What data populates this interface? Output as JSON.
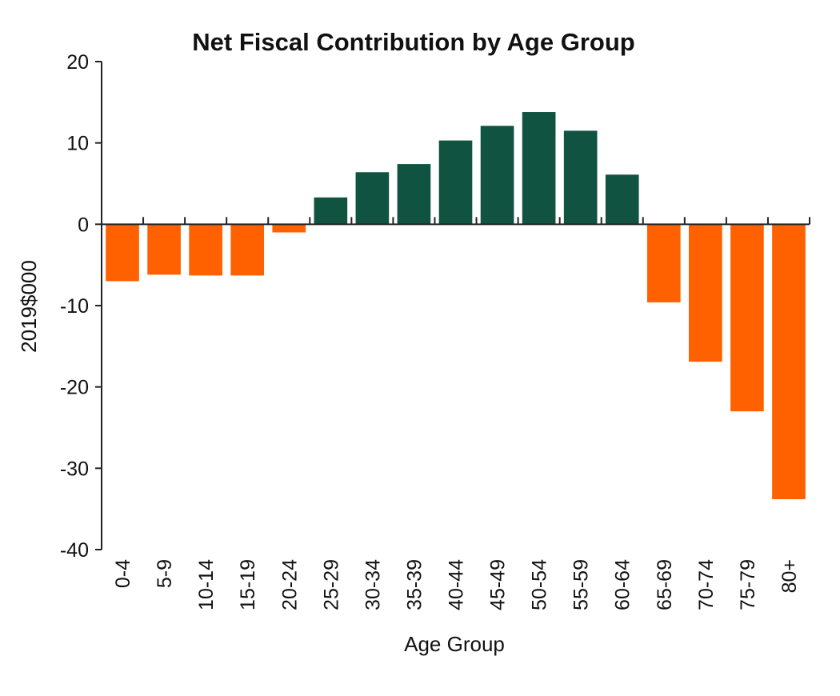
{
  "chart_data": {
    "type": "bar",
    "title": "Net Fiscal Contribution by Age Group",
    "xlabel": "Age Group",
    "ylabel": "2019$000",
    "ylim": [
      -40,
      20
    ],
    "yticks": [
      20,
      10,
      0,
      -10,
      -20,
      -30,
      -40
    ],
    "ytick_labels": [
      "20",
      "10",
      "0",
      "-10",
      "-20",
      "-30",
      "-40"
    ],
    "categories": [
      "0-4",
      "5-9",
      "10-14",
      "15-19",
      "20-24",
      "25-29",
      "30-34",
      "35-39",
      "40-44",
      "45-49",
      "50-54",
      "55-59",
      "60-64",
      "65-69",
      "70-74",
      "75-79",
      "80+"
    ],
    "values": [
      -7.0,
      -6.2,
      -6.3,
      -6.3,
      -1.0,
      3.3,
      6.4,
      7.4,
      10.3,
      12.1,
      13.8,
      11.5,
      6.1,
      -9.6,
      -16.9,
      -23.0,
      -33.8
    ],
    "grid": false,
    "legend": "none",
    "colors": {
      "positive": "#0f5340",
      "negative": "#ff6000",
      "axis": "#222222",
      "text": "#111111"
    }
  }
}
